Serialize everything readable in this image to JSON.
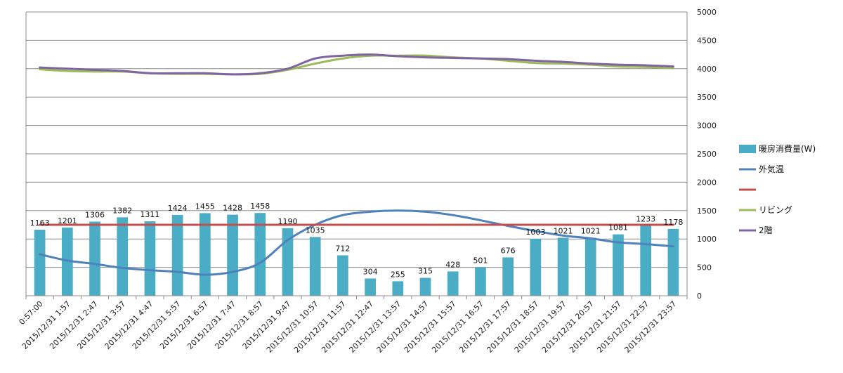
{
  "chart_data": {
    "type": "bar",
    "categories": [
      "0:57:00",
      "2015/12/31 1:57",
      "2015/12/31 2:47",
      "2015/12/31 3:57",
      "2015/12/31 4:47",
      "2015/12/31 5:57",
      "2015/12/31 6:57",
      "2015/12/31 7:47",
      "2015/12/31 8:57",
      "2015/12/31 9:47",
      "2015/12/31 10:57",
      "2015/12/31 11:57",
      "2015/12/31 12:47",
      "2015/12/31 13:57",
      "2015/12/31 14:57",
      "2015/12/31 15:57",
      "2015/12/31 16:57",
      "2015/12/31 17:57",
      "2015/12/31 18:57",
      "2015/12/31 19:57",
      "2015/12/31 20:57",
      "2015/12/31 21:57",
      "2015/12/31 22:57",
      "2015/12/31 23:57"
    ],
    "y_ticks": [
      0,
      500,
      1000,
      1500,
      2000,
      2500,
      3000,
      3500,
      4000,
      4500,
      5000
    ],
    "ylim": [
      0,
      5000
    ],
    "grid": true,
    "legend_position": "right",
    "series": [
      {
        "name": "暖房消費量(W)",
        "kind": "bar",
        "color": "#4bacc6",
        "values": [
          1163,
          1201,
          1306,
          1382,
          1311,
          1424,
          1455,
          1428,
          1458,
          1190,
          1035,
          712,
          304,
          255,
          315,
          428,
          501,
          676,
          1003,
          1021,
          1021,
          1081,
          1233,
          1178
        ],
        "labels": [
          "1163",
          "1201",
          "1306",
          "1382",
          "1311",
          "1424",
          "1455",
          "1428",
          "1458",
          "1190",
          "1035",
          "712",
          "304",
          "255",
          "315",
          "428",
          "501",
          "676",
          "1003",
          "1021",
          "1021",
          "1081",
          "1233",
          "1178"
        ]
      },
      {
        "name": "外気温",
        "kind": "line",
        "color": "#4f81bd",
        "values": [
          730,
          620,
          560,
          490,
          450,
          420,
          370,
          420,
          580,
          980,
          1250,
          1420,
          1480,
          1500,
          1480,
          1420,
          1330,
          1230,
          1140,
          1060,
          1010,
          940,
          910,
          870
        ]
      },
      {
        "name": "",
        "kind": "line",
        "color": "#c0504d",
        "values": [
          1250,
          1250,
          1250,
          1250,
          1250,
          1250,
          1250,
          1250,
          1250,
          1250,
          1250,
          1250,
          1250,
          1250,
          1250,
          1250,
          1250,
          1250,
          1250,
          1250,
          1250,
          1250,
          1250,
          1250
        ]
      },
      {
        "name": "リビング",
        "kind": "line",
        "color": "#9bbb59",
        "values": [
          3990,
          3960,
          3950,
          3950,
          3920,
          3910,
          3910,
          3900,
          3910,
          3980,
          4090,
          4180,
          4230,
          4230,
          4230,
          4200,
          4180,
          4140,
          4100,
          4090,
          4070,
          4040,
          4030,
          4010
        ]
      },
      {
        "name": "2階",
        "kind": "line",
        "color": "#8064a2",
        "values": [
          4020,
          4000,
          3980,
          3960,
          3920,
          3920,
          3920,
          3900,
          3920,
          4000,
          4180,
          4230,
          4250,
          4220,
          4200,
          4190,
          4180,
          4170,
          4140,
          4120,
          4090,
          4070,
          4060,
          4040
        ]
      }
    ]
  }
}
